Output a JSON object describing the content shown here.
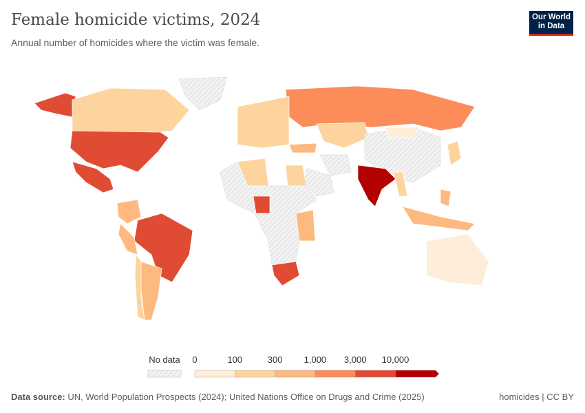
{
  "header": {
    "title": "Female homicide victims, 2024",
    "subtitle": "Annual number of homicides where the victim was female.",
    "logo": "Our World in Data"
  },
  "legend": {
    "no_data_label": "No data",
    "ticks": [
      "0",
      "100",
      "300",
      "1,000",
      "3,000",
      "10,000"
    ],
    "bin_colors": [
      "#feedd8",
      "#fdd49e",
      "#fdb97f",
      "#fc8c59",
      "#e04b34",
      "#b30000"
    ],
    "no_data_color": "#e8e8e8"
  },
  "map": {
    "regions": [
      {
        "name": "United States",
        "bin": 4
      },
      {
        "name": "Canada",
        "bin": 1
      },
      {
        "name": "Mexico",
        "bin": 4
      },
      {
        "name": "Greenland",
        "bin": -1
      },
      {
        "name": "Brazil",
        "bin": 4
      },
      {
        "name": "Colombia",
        "bin": 2
      },
      {
        "name": "Peru",
        "bin": 2
      },
      {
        "name": "Argentina",
        "bin": 2
      },
      {
        "name": "Chile",
        "bin": 1
      },
      {
        "name": "Russia",
        "bin": 3
      },
      {
        "name": "Kazakhstan",
        "bin": 1
      },
      {
        "name": "China",
        "bin": -1
      },
      {
        "name": "Mongolia",
        "bin": 0
      },
      {
        "name": "India",
        "bin": 5
      },
      {
        "name": "Turkey",
        "bin": 2
      },
      {
        "name": "Iran",
        "bin": -1
      },
      {
        "name": "Saudi Arabia",
        "bin": -1
      },
      {
        "name": "Algeria",
        "bin": 1
      },
      {
        "name": "Egypt",
        "bin": 1
      },
      {
        "name": "Nigeria",
        "bin": 4
      },
      {
        "name": "South Africa",
        "bin": 4
      },
      {
        "name": "Tanzania",
        "bin": 2
      },
      {
        "name": "Australia",
        "bin": 0
      },
      {
        "name": "Indonesia",
        "bin": 2
      },
      {
        "name": "Japan",
        "bin": 1
      },
      {
        "name": "Philippines",
        "bin": 2
      },
      {
        "name": "Myanmar",
        "bin": 1
      },
      {
        "name": "Western Europe",
        "bin": 1
      },
      {
        "name": "Central Africa",
        "bin": -1
      }
    ]
  },
  "footer": {
    "source_label": "Data source:",
    "source": "UN, World Population Prospects (2024); United Nations Office on Drugs and Crime (2025)",
    "license": "homicides | CC BY"
  }
}
